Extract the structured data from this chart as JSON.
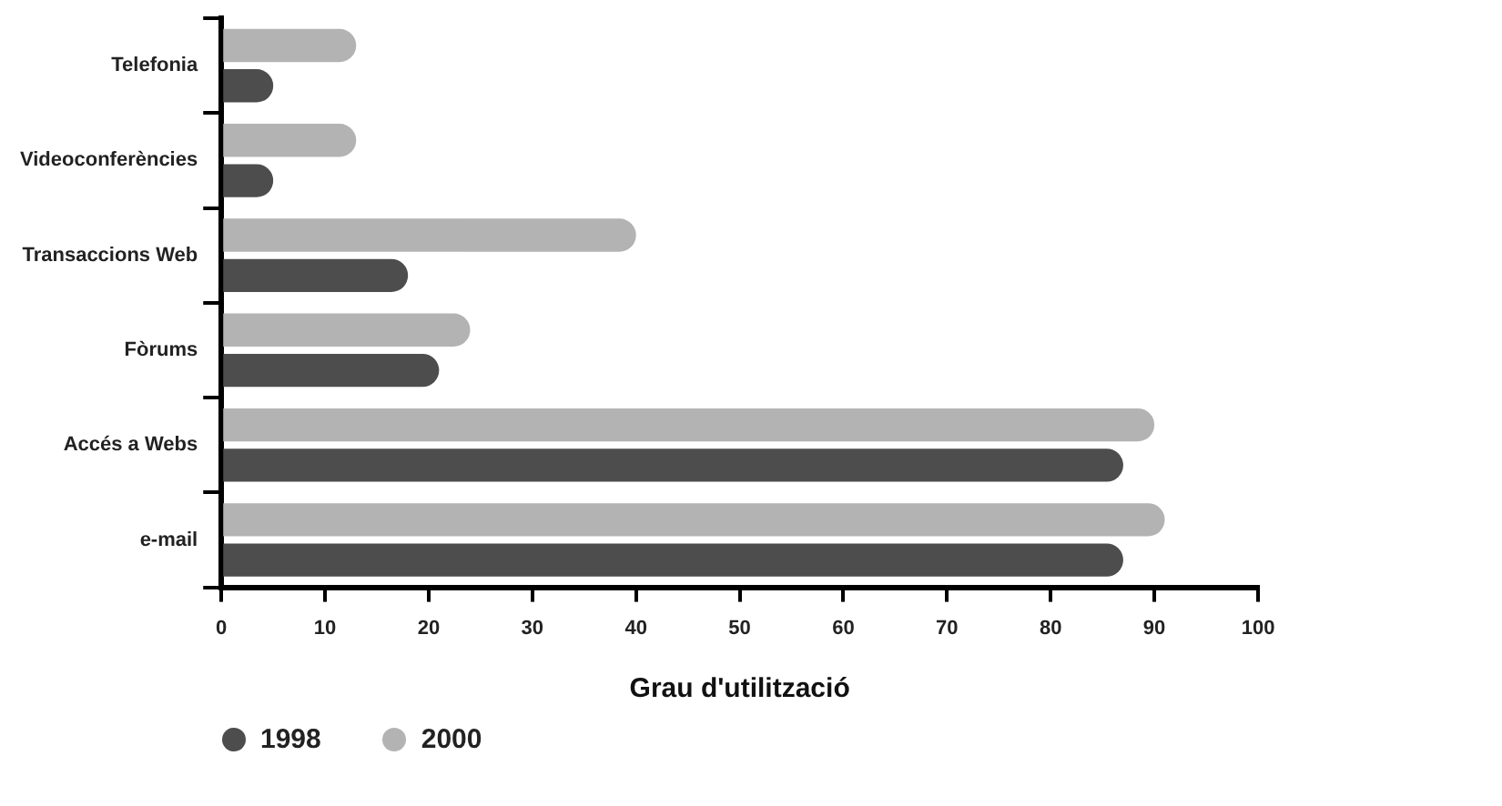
{
  "chart_data": {
    "type": "bar",
    "orientation": "horizontal",
    "xlabel": "Grau d'utilització",
    "categories": [
      "Telefonia",
      "Videoconferències",
      "Transaccions Web",
      "Fòrums",
      "Accés a Webs",
      "e-mail"
    ],
    "series": [
      {
        "name": "1998",
        "color": "#4d4d4d",
        "values": [
          5,
          5,
          18,
          21,
          87,
          87
        ]
      },
      {
        "name": "2000",
        "color": "#b3b3b3",
        "values": [
          13,
          13,
          40,
          24,
          90,
          91
        ]
      }
    ],
    "xlim": [
      0,
      100
    ],
    "xticks": [
      0,
      10,
      20,
      30,
      40,
      50,
      60,
      70,
      80,
      90,
      100
    ],
    "grid": false,
    "legend": "bottom left"
  }
}
